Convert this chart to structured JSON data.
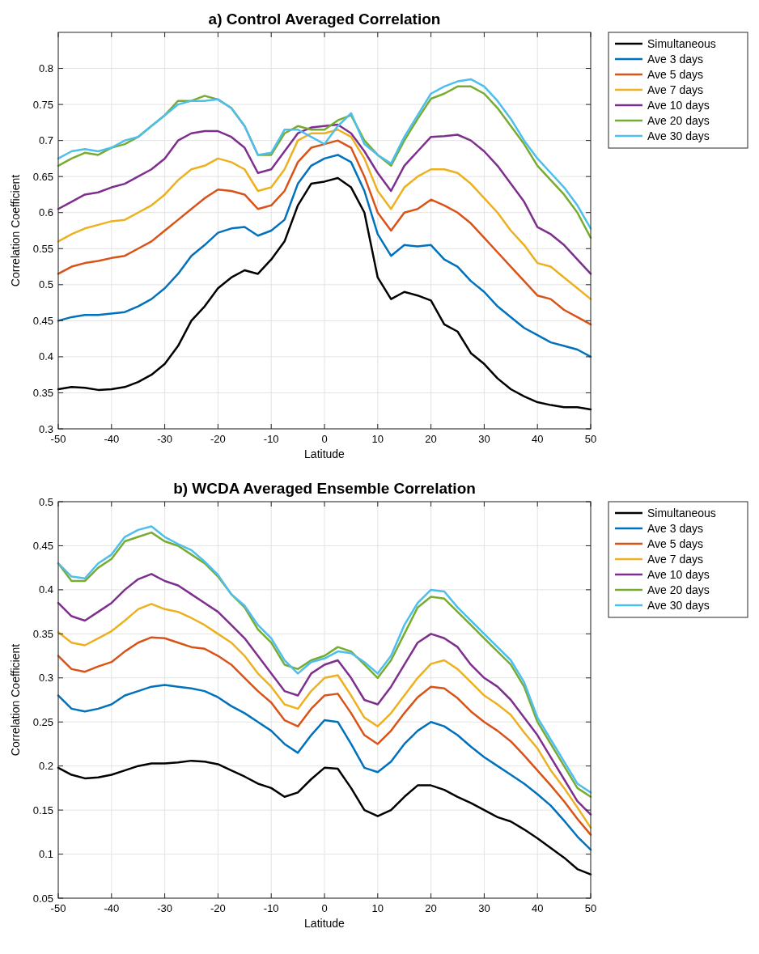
{
  "chart_data": [
    {
      "type": "line",
      "title": "a) Control Averaged Correlation",
      "xlabel": "Latitude",
      "ylabel": "Correlation Coefficient",
      "x": [
        -50,
        -47.5,
        -45,
        -42.5,
        -40,
        -37.5,
        -35,
        -32.5,
        -30,
        -27.5,
        -25,
        -22.5,
        -20,
        -17.5,
        -15,
        -12.5,
        -10,
        -7.5,
        -5,
        -2.5,
        0,
        2.5,
        5,
        7.5,
        10,
        12.5,
        15,
        17.5,
        20,
        22.5,
        25,
        27.5,
        30,
        32.5,
        35,
        37.5,
        40,
        42.5,
        45,
        47.5,
        50
      ],
      "xlim": [
        -50,
        50
      ],
      "xticks": [
        -50,
        -40,
        -30,
        -20,
        -10,
        0,
        10,
        20,
        30,
        40,
        50
      ],
      "ylim": [
        0.3,
        0.85
      ],
      "yticks": [
        0.3,
        0.35,
        0.4,
        0.45,
        0.5,
        0.55,
        0.6,
        0.65,
        0.7,
        0.75,
        0.8
      ],
      "grid": true,
      "legend": "right",
      "line_style": "solid",
      "marker": "none",
      "series": [
        {
          "name": "Simultaneous",
          "color": "#000000",
          "values": [
            0.355,
            0.358,
            0.357,
            0.354,
            0.355,
            0.358,
            0.365,
            0.375,
            0.39,
            0.415,
            0.45,
            0.47,
            0.495,
            0.51,
            0.52,
            0.515,
            0.535,
            0.56,
            0.61,
            0.64,
            0.643,
            0.648,
            0.635,
            0.6,
            0.51,
            0.48,
            0.49,
            0.485,
            0.478,
            0.445,
            0.435,
            0.405,
            0.39,
            0.37,
            0.355,
            0.345,
            0.337,
            0.333,
            0.33,
            0.33,
            0.327
          ]
        },
        {
          "name": "Ave 3 days",
          "color": "#0072bd",
          "values": [
            0.45,
            0.455,
            0.458,
            0.458,
            0.46,
            0.462,
            0.47,
            0.48,
            0.495,
            0.515,
            0.54,
            0.555,
            0.572,
            0.578,
            0.58,
            0.568,
            0.575,
            0.59,
            0.64,
            0.665,
            0.675,
            0.68,
            0.67,
            0.63,
            0.57,
            0.54,
            0.555,
            0.553,
            0.555,
            0.535,
            0.525,
            0.505,
            0.49,
            0.47,
            0.455,
            0.44,
            0.43,
            0.42,
            0.415,
            0.41,
            0.4
          ]
        },
        {
          "name": "Ave 5 days",
          "color": "#d95319",
          "values": [
            0.515,
            0.525,
            0.53,
            0.533,
            0.537,
            0.54,
            0.55,
            0.56,
            0.575,
            0.59,
            0.605,
            0.62,
            0.632,
            0.63,
            0.625,
            0.605,
            0.61,
            0.63,
            0.67,
            0.69,
            0.695,
            0.7,
            0.69,
            0.65,
            0.6,
            0.575,
            0.6,
            0.605,
            0.618,
            0.61,
            0.6,
            0.585,
            0.565,
            0.545,
            0.525,
            0.505,
            0.485,
            0.48,
            0.465,
            0.455,
            0.445
          ]
        },
        {
          "name": "Ave 7 days",
          "color": "#edb120",
          "values": [
            0.56,
            0.57,
            0.578,
            0.583,
            0.588,
            0.59,
            0.6,
            0.61,
            0.625,
            0.645,
            0.66,
            0.665,
            0.675,
            0.67,
            0.66,
            0.63,
            0.635,
            0.66,
            0.7,
            0.71,
            0.71,
            0.715,
            0.705,
            0.675,
            0.63,
            0.605,
            0.635,
            0.65,
            0.66,
            0.66,
            0.655,
            0.64,
            0.62,
            0.6,
            0.575,
            0.555,
            0.53,
            0.525,
            0.51,
            0.495,
            0.48
          ]
        },
        {
          "name": "Ave 10 days",
          "color": "#7e2f8e",
          "values": [
            0.605,
            0.615,
            0.625,
            0.628,
            0.635,
            0.64,
            0.65,
            0.66,
            0.675,
            0.7,
            0.71,
            0.713,
            0.713,
            0.705,
            0.69,
            0.655,
            0.66,
            0.685,
            0.71,
            0.718,
            0.72,
            0.722,
            0.71,
            0.685,
            0.655,
            0.63,
            0.665,
            0.685,
            0.705,
            0.706,
            0.708,
            0.7,
            0.685,
            0.665,
            0.64,
            0.615,
            0.58,
            0.57,
            0.555,
            0.535,
            0.515
          ]
        },
        {
          "name": "Ave 20 days",
          "color": "#77ac30",
          "values": [
            0.665,
            0.675,
            0.683,
            0.68,
            0.69,
            0.695,
            0.705,
            0.72,
            0.735,
            0.755,
            0.755,
            0.762,
            0.757,
            0.745,
            0.72,
            0.68,
            0.68,
            0.71,
            0.72,
            0.715,
            0.715,
            0.728,
            0.735,
            0.7,
            0.68,
            0.665,
            0.7,
            0.73,
            0.758,
            0.765,
            0.775,
            0.775,
            0.765,
            0.745,
            0.72,
            0.695,
            0.665,
            0.645,
            0.625,
            0.6,
            0.565
          ]
        },
        {
          "name": "Ave 30 days",
          "color": "#4dbeee",
          "values": [
            0.675,
            0.685,
            0.688,
            0.685,
            0.69,
            0.7,
            0.705,
            0.72,
            0.735,
            0.75,
            0.755,
            0.755,
            0.757,
            0.745,
            0.72,
            0.68,
            0.683,
            0.715,
            0.715,
            0.705,
            0.695,
            0.72,
            0.738,
            0.695,
            0.68,
            0.668,
            0.705,
            0.735,
            0.765,
            0.775,
            0.782,
            0.785,
            0.775,
            0.755,
            0.73,
            0.7,
            0.675,
            0.655,
            0.635,
            0.61,
            0.578
          ]
        }
      ]
    },
    {
      "type": "line",
      "title": "b) WCDA Averaged Ensemble Correlation",
      "xlabel": "Latitude",
      "ylabel": "Correlation Coefficient",
      "x": [
        -50,
        -47.5,
        -45,
        -42.5,
        -40,
        -37.5,
        -35,
        -32.5,
        -30,
        -27.5,
        -25,
        -22.5,
        -20,
        -17.5,
        -15,
        -12.5,
        -10,
        -7.5,
        -5,
        -2.5,
        0,
        2.5,
        5,
        7.5,
        10,
        12.5,
        15,
        17.5,
        20,
        22.5,
        25,
        27.5,
        30,
        32.5,
        35,
        37.5,
        40,
        42.5,
        45,
        47.5,
        50
      ],
      "xlim": [
        -50,
        50
      ],
      "xticks": [
        -50,
        -40,
        -30,
        -20,
        -10,
        0,
        10,
        20,
        30,
        40,
        50
      ],
      "ylim": [
        0.05,
        0.5
      ],
      "yticks": [
        0.05,
        0.1,
        0.15,
        0.2,
        0.25,
        0.3,
        0.35,
        0.4,
        0.45,
        0.5
      ],
      "grid": true,
      "legend": "right",
      "line_style": "solid",
      "marker": "none",
      "series": [
        {
          "name": "Simultaneous",
          "color": "#000000",
          "values": [
            0.198,
            0.19,
            0.186,
            0.187,
            0.19,
            0.195,
            0.2,
            0.203,
            0.203,
            0.204,
            0.206,
            0.205,
            0.202,
            0.195,
            0.188,
            0.18,
            0.175,
            0.165,
            0.17,
            0.185,
            0.198,
            0.197,
            0.175,
            0.15,
            0.143,
            0.15,
            0.165,
            0.178,
            0.178,
            0.173,
            0.165,
            0.158,
            0.15,
            0.142,
            0.137,
            0.128,
            0.118,
            0.107,
            0.096,
            0.083,
            0.077
          ]
        },
        {
          "name": "Ave 3 days",
          "color": "#0072bd",
          "values": [
            0.28,
            0.265,
            0.262,
            0.265,
            0.27,
            0.28,
            0.285,
            0.29,
            0.292,
            0.29,
            0.288,
            0.285,
            0.278,
            0.268,
            0.26,
            0.25,
            0.24,
            0.225,
            0.215,
            0.235,
            0.252,
            0.25,
            0.225,
            0.198,
            0.193,
            0.205,
            0.225,
            0.24,
            0.25,
            0.245,
            0.235,
            0.222,
            0.21,
            0.2,
            0.19,
            0.18,
            0.168,
            0.155,
            0.138,
            0.12,
            0.105
          ]
        },
        {
          "name": "Ave 5 days",
          "color": "#d95319",
          "values": [
            0.325,
            0.31,
            0.307,
            0.313,
            0.318,
            0.33,
            0.34,
            0.346,
            0.345,
            0.34,
            0.335,
            0.333,
            0.325,
            0.315,
            0.3,
            0.285,
            0.272,
            0.252,
            0.245,
            0.265,
            0.28,
            0.282,
            0.26,
            0.235,
            0.225,
            0.24,
            0.26,
            0.278,
            0.29,
            0.288,
            0.277,
            0.262,
            0.25,
            0.24,
            0.228,
            0.212,
            0.195,
            0.178,
            0.16,
            0.14,
            0.122
          ]
        },
        {
          "name": "Ave 7 days",
          "color": "#edb120",
          "values": [
            0.352,
            0.34,
            0.337,
            0.345,
            0.353,
            0.365,
            0.378,
            0.384,
            0.378,
            0.375,
            0.368,
            0.36,
            0.35,
            0.34,
            0.325,
            0.305,
            0.29,
            0.27,
            0.265,
            0.285,
            0.3,
            0.303,
            0.28,
            0.255,
            0.245,
            0.26,
            0.28,
            0.3,
            0.316,
            0.32,
            0.31,
            0.295,
            0.28,
            0.27,
            0.258,
            0.238,
            0.22,
            0.195,
            0.175,
            0.153,
            0.13
          ]
        },
        {
          "name": "Ave 10 days",
          "color": "#7e2f8e",
          "values": [
            0.385,
            0.37,
            0.365,
            0.375,
            0.385,
            0.4,
            0.412,
            0.418,
            0.41,
            0.405,
            0.395,
            0.385,
            0.375,
            0.36,
            0.345,
            0.325,
            0.305,
            0.285,
            0.28,
            0.305,
            0.315,
            0.32,
            0.3,
            0.275,
            0.27,
            0.29,
            0.315,
            0.34,
            0.35,
            0.345,
            0.335,
            0.315,
            0.3,
            0.29,
            0.275,
            0.255,
            0.235,
            0.21,
            0.185,
            0.16,
            0.145
          ]
        },
        {
          "name": "Ave 20 days",
          "color": "#77ac30",
          "values": [
            0.43,
            0.41,
            0.41,
            0.425,
            0.435,
            0.455,
            0.46,
            0.465,
            0.455,
            0.45,
            0.44,
            0.43,
            0.415,
            0.395,
            0.38,
            0.355,
            0.34,
            0.315,
            0.31,
            0.32,
            0.325,
            0.335,
            0.33,
            0.315,
            0.3,
            0.32,
            0.35,
            0.38,
            0.392,
            0.39,
            0.375,
            0.36,
            0.345,
            0.33,
            0.315,
            0.29,
            0.25,
            0.225,
            0.2,
            0.175,
            0.165
          ]
        },
        {
          "name": "Ave 30 days",
          "color": "#4dbeee",
          "values": [
            0.43,
            0.415,
            0.413,
            0.43,
            0.44,
            0.46,
            0.468,
            0.472,
            0.46,
            0.452,
            0.445,
            0.432,
            0.417,
            0.395,
            0.382,
            0.36,
            0.345,
            0.32,
            0.305,
            0.318,
            0.322,
            0.33,
            0.328,
            0.318,
            0.305,
            0.325,
            0.36,
            0.385,
            0.4,
            0.398,
            0.38,
            0.365,
            0.35,
            0.335,
            0.32,
            0.295,
            0.255,
            0.23,
            0.205,
            0.18,
            0.17
          ]
        }
      ]
    }
  ]
}
